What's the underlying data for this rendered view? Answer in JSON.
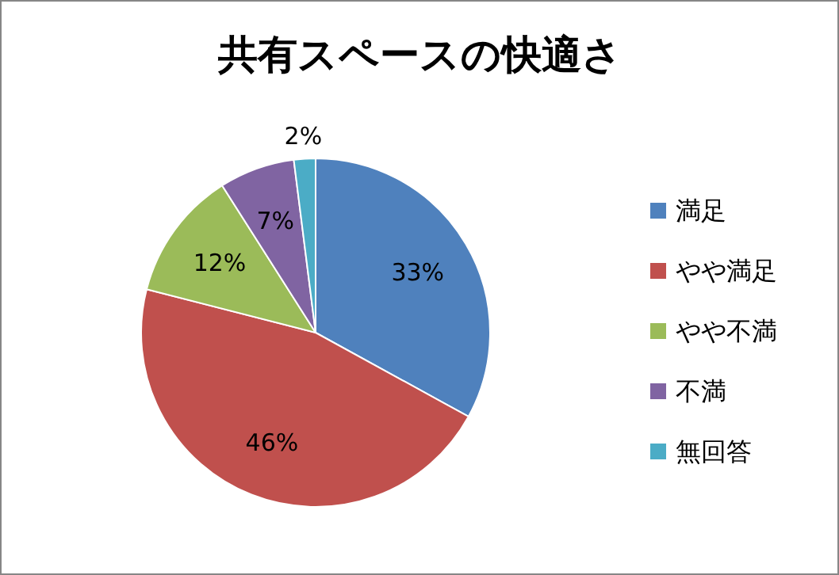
{
  "chart_data": {
    "type": "pie",
    "title": "共有スペースの快適さ",
    "categories": [
      "満足",
      "やや満足",
      "やや不満",
      "不満",
      "無回答"
    ],
    "values": [
      33,
      46,
      12,
      7,
      2
    ],
    "colors": [
      "#4f81bd",
      "#c0504d",
      "#9bbb59",
      "#8064a2",
      "#4bacc6"
    ],
    "value_labels": [
      "33%",
      "46%",
      "12%",
      "7%",
      "2%"
    ],
    "legend": "right"
  }
}
